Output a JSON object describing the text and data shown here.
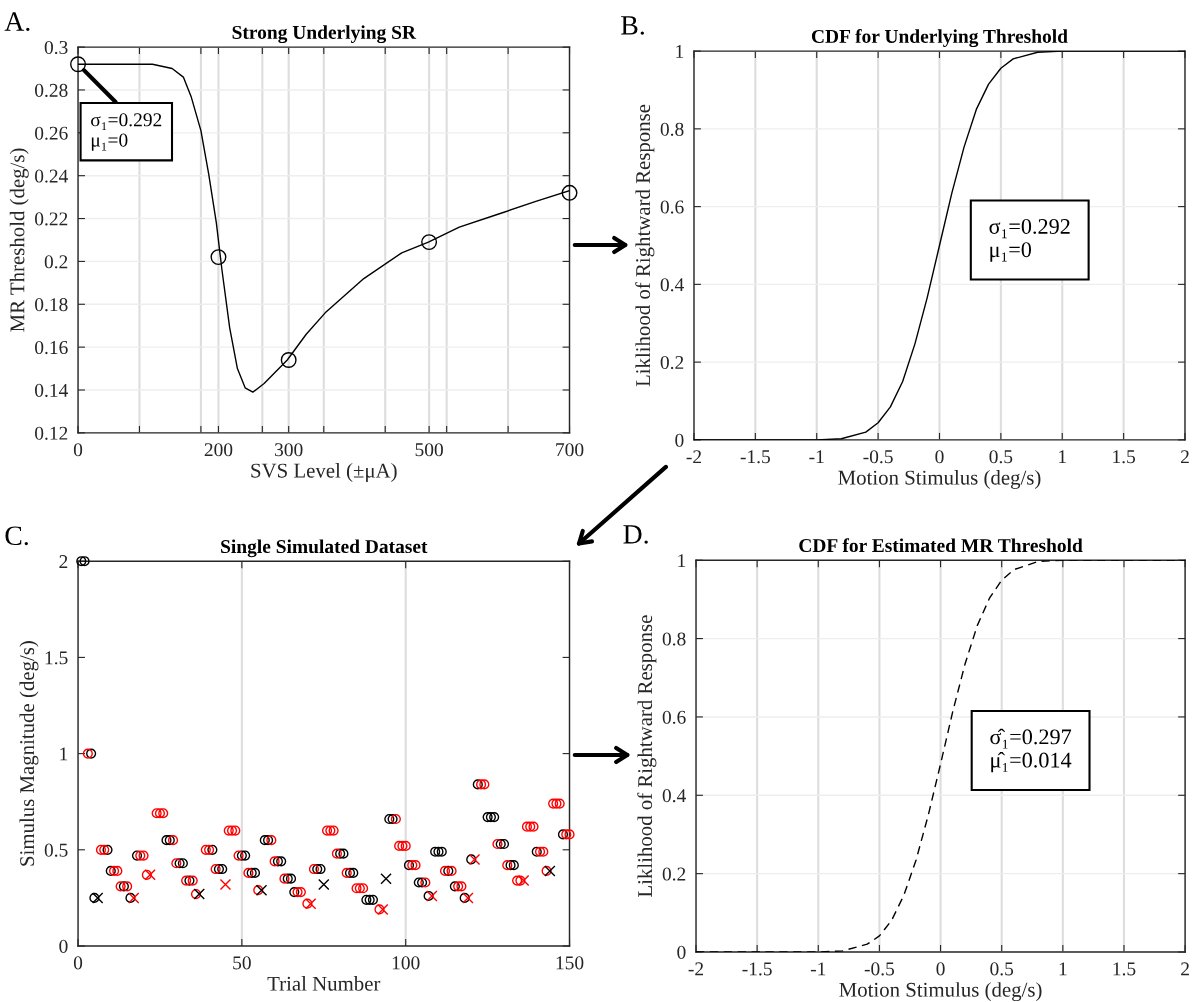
{
  "chart_data": [
    {
      "type": "line",
      "title": "Strong Underlying SR",
      "xlabel": "SVS Level (±μA)",
      "ylabel": "MR Threshold (deg/s)",
      "xlim": [
        0,
        700
      ],
      "ylim": [
        0.12,
        0.3
      ],
      "xticks": [
        0,
        {
          "value": 87.5,
          "label": null
        },
        {
          "value": 175,
          "label": null
        },
        200,
        {
          "value": 262.5,
          "label": null
        },
        300,
        {
          "value": 350,
          "label": null
        },
        {
          "value": 437.5,
          "label": null
        },
        500,
        {
          "value": 525,
          "label": null
        },
        {
          "value": 612.5,
          "label": null
        },
        700
      ],
      "yticks": [
        0.12,
        0.14,
        0.16,
        0.18,
        0.2,
        0.22,
        0.24,
        0.26,
        0.28,
        0.3
      ],
      "grid": true,
      "annotations": [
        "A.",
        {
          "text": "σ₁=0.292\nμ₁=0",
          "x": 0,
          "y": 0.292
        }
      ],
      "series": [
        {
          "type": "line",
          "color": "#000000",
          "x": [
            0,
            106,
            134,
            150,
            161,
            175,
            186,
            197,
            205,
            216,
            227,
            238,
            249,
            265,
            298,
            325,
            352,
            407,
            461,
            499,
            543,
            598,
            652,
            700
          ],
          "values": [
            0.292,
            0.292,
            0.29,
            0.286,
            0.277,
            0.261,
            0.241,
            0.218,
            0.196,
            0.169,
            0.15,
            0.141,
            0.139,
            0.143,
            0.154,
            0.166,
            0.176,
            0.192,
            0.204,
            0.209,
            0.216,
            0.222,
            0.228,
            0.233
          ]
        },
        {
          "type": "scatter",
          "marker": "circle",
          "color": "#000000",
          "x": [
            0,
            200,
            300,
            500,
            700
          ],
          "values": [
            0.292,
            0.202,
            0.154,
            0.209,
            0.232
          ]
        }
      ]
    },
    {
      "type": "line",
      "title": "CDF for Underlying Threshold",
      "xlabel": "Motion Stimulus (deg/s)",
      "ylabel": "Liklihood of Rightward Response",
      "xlim": [
        -2,
        2
      ],
      "ylim": [
        0,
        1
      ],
      "xticks": [
        -2,
        -1.5,
        -1,
        -0.5,
        0,
        0.5,
        1,
        1.5,
        2
      ],
      "yticks": [
        0,
        0.2,
        0.4,
        0.6,
        0.8,
        1
      ],
      "grid": true,
      "line_style": "solid",
      "annotations": [
        "B.",
        "σ₁=0.292\nμ₁=0"
      ],
      "series": [
        {
          "color": "#000000",
          "x": [
            -2,
            -1,
            -0.8,
            -0.6,
            -0.5,
            -0.4,
            -0.3,
            -0.2,
            -0.1,
            0,
            0.1,
            0.2,
            0.3,
            0.4,
            0.5,
            0.6,
            0.8,
            1,
            2
          ],
          "values": [
            0,
            0,
            0.003,
            0.02,
            0.044,
            0.085,
            0.15,
            0.247,
            0.366,
            0.5,
            0.634,
            0.753,
            0.85,
            0.915,
            0.956,
            0.98,
            0.997,
            1,
            1
          ]
        }
      ]
    },
    {
      "type": "scatter",
      "title": "Single Simulated Dataset",
      "xlabel": "Trial Number",
      "ylabel": "Simulus Magnitude (deg/s)",
      "xlim": [
        0,
        150
      ],
      "ylim": [
        0,
        2
      ],
      "xticks": [
        0,
        50,
        100,
        150
      ],
      "yticks": [
        0,
        0.5,
        1,
        1.5,
        2
      ],
      "grid": "x",
      "annotations": [
        "C."
      ],
      "series": [
        {
          "marker": "circle",
          "color": "#000000",
          "x": [
            1,
            2,
            4,
            5,
            9,
            10,
            14,
            16,
            18,
            27,
            28,
            31,
            32,
            34,
            41,
            43,
            44,
            50,
            51,
            53,
            54,
            57,
            58,
            61,
            62,
            64,
            65,
            66,
            73,
            74,
            80,
            81,
            83,
            84,
            88,
            89,
            90,
            95,
            96,
            101,
            104,
            105,
            107,
            109,
            110,
            111,
            113,
            115,
            118,
            120,
            122,
            125,
            126,
            127,
            129,
            130,
            132,
            133,
            140,
            148
          ],
          "values": [
            2,
            2,
            1,
            0.25,
            0.5,
            0.39,
            0.31,
            0.25,
            0.47,
            0.55,
            0.55,
            0.43,
            0.43,
            0.34,
            0.5,
            0.4,
            0.4,
            0.47,
            0.47,
            0.38,
            0.38,
            0.55,
            0.55,
            0.44,
            0.44,
            0.35,
            0.35,
            0.28,
            0.4,
            0.4,
            0.48,
            0.48,
            0.38,
            0.38,
            0.24,
            0.24,
            0.24,
            0.66,
            0.66,
            0.42,
            0.33,
            0.33,
            0.26,
            0.49,
            0.49,
            0.49,
            0.39,
            0.31,
            0.25,
            0.45,
            0.84,
            0.67,
            0.67,
            0.67,
            0.53,
            0.53,
            0.42,
            0.42,
            0.49,
            0.58
          ]
        },
        {
          "marker": "circle",
          "color": "#ff0000",
          "x": [
            3,
            7,
            8,
            11,
            12,
            13,
            15,
            19,
            20,
            21,
            24,
            25,
            26,
            29,
            30,
            33,
            35,
            36,
            39,
            40,
            42,
            46,
            47,
            48,
            49,
            52,
            55,
            59,
            60,
            63,
            67,
            68,
            70,
            72,
            76,
            77,
            78,
            79,
            82,
            85,
            86,
            87,
            92,
            97,
            98,
            99,
            100,
            102,
            103,
            106,
            112,
            114,
            116,
            117,
            123,
            124,
            128,
            131,
            134,
            135,
            137,
            138,
            139,
            141,
            142,
            143,
            145,
            146,
            147,
            149,
            150
          ],
          "values": [
            1,
            0.5,
            0.5,
            0.39,
            0.39,
            0.31,
            0.31,
            0.47,
            0.47,
            0.37,
            0.69,
            0.69,
            0.69,
            0.55,
            0.43,
            0.34,
            0.34,
            0.27,
            0.5,
            0.5,
            0.4,
            0.6,
            0.6,
            0.6,
            0.47,
            0.38,
            0.29,
            0.55,
            0.44,
            0.35,
            0.28,
            0.28,
            0.22,
            0.4,
            0.6,
            0.6,
            0.6,
            0.48,
            0.38,
            0.3,
            0.3,
            0.3,
            0.19,
            0.66,
            0.52,
            0.52,
            0.52,
            0.42,
            0.42,
            0.33,
            0.39,
            0.39,
            0.31,
            0.31,
            0.84,
            0.84,
            0.53,
            0.42,
            0.34,
            0.34,
            0.62,
            0.62,
            0.62,
            0.49,
            0.49,
            0.39,
            0.74,
            0.74,
            0.74,
            0.58,
            0.58
          ]
        },
        {
          "marker": "cross",
          "color": "#000000",
          "x": [
            6,
            37,
            56,
            75,
            94,
            144
          ],
          "values": [
            0.25,
            0.27,
            0.29,
            0.32,
            0.35,
            0.39
          ]
        },
        {
          "marker": "cross",
          "color": "#ff0000",
          "x": [
            17,
            22,
            45,
            71,
            93,
            108,
            119,
            121,
            136
          ],
          "values": [
            0.25,
            0.37,
            0.32,
            0.22,
            0.19,
            0.26,
            0.25,
            0.45,
            0.34
          ]
        }
      ]
    },
    {
      "type": "line",
      "title": "CDF for Estimated MR Threshold",
      "xlabel": "Motion Stimulus (deg/s)",
      "ylabel": "Liklihood of Rightward Response",
      "xlim": [
        -2,
        2
      ],
      "ylim": [
        0,
        1
      ],
      "xticks": [
        -2,
        -1.5,
        -1,
        -0.5,
        0,
        0.5,
        1,
        1.5,
        2
      ],
      "yticks": [
        0,
        0.2,
        0.4,
        0.6,
        0.8,
        1
      ],
      "grid": true,
      "line_style": "dashed",
      "annotations": [
        "D.",
        "σ̂₁=0.297\nμ̂₁=0.014"
      ],
      "series": [
        {
          "color": "#000000",
          "x": [
            -2,
            -1,
            -0.8,
            -0.6,
            -0.5,
            -0.4,
            -0.3,
            -0.2,
            -0.1,
            0,
            0.1,
            0.2,
            0.3,
            0.4,
            0.5,
            0.6,
            0.8,
            1,
            2
          ],
          "values": [
            0,
            0,
            0.003,
            0.02,
            0.041,
            0.081,
            0.145,
            0.235,
            0.35,
            0.48,
            0.614,
            0.735,
            0.833,
            0.903,
            0.949,
            0.976,
            0.997,
            1,
            1
          ]
        }
      ]
    }
  ]
}
